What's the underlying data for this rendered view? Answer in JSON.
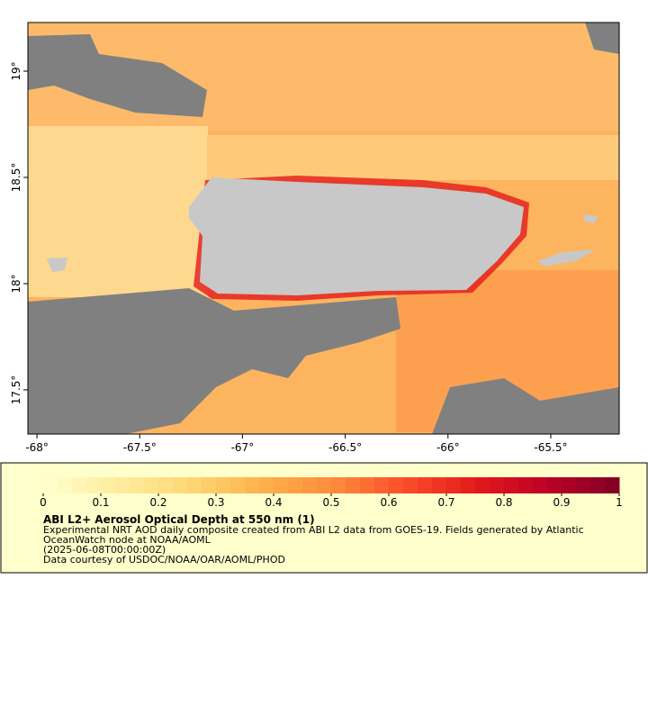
{
  "map": {
    "lon_lim": [
      -68.044,
      -65.167
    ],
    "lat_lim": [
      17.292,
      19.229
    ],
    "lon_ticks": [
      {
        "value": -68,
        "label": "-68°"
      },
      {
        "value": -67.5,
        "label": "-67.5°"
      },
      {
        "value": -67,
        "label": "-67°"
      },
      {
        "value": -66.5,
        "label": "-66.5°"
      },
      {
        "value": -66,
        "label": "-66°"
      },
      {
        "value": -65.5,
        "label": "-65.5°"
      }
    ],
    "lat_ticks": [
      {
        "value": 17.5,
        "label": "17.5°"
      },
      {
        "value": 18,
        "label": "18°"
      },
      {
        "value": 18.5,
        "label": "18.5°"
      },
      {
        "value": 19,
        "label": "19°"
      }
    ]
  },
  "colorbar": {
    "lim": [
      0,
      1
    ],
    "ticks": [
      0,
      0.1,
      0.2,
      0.3,
      0.4,
      0.5,
      0.6,
      0.7,
      0.8,
      0.9,
      1
    ],
    "colors": [
      "#ffffcc",
      "#ffeda0",
      "#fed976",
      "#feb24c",
      "#fd8d3c",
      "#fc4e2a",
      "#e31a1c",
      "#bd0026",
      "#800026"
    ]
  },
  "legend": {
    "title": "ABI L2+ Aerosol Optical Depth at 550 nm (1)",
    "lines": [
      "Experimental NRT AOD daily composite created from ABI L2 data from GOES-19. Fields generated by Atlantic",
      "OceanWatch node at NOAA/AOML",
      "(2025-06-08T00:00:00Z)",
      "Data courtesy of USDOC/NOAA/OAR/AOML/PHOD"
    ]
  }
}
